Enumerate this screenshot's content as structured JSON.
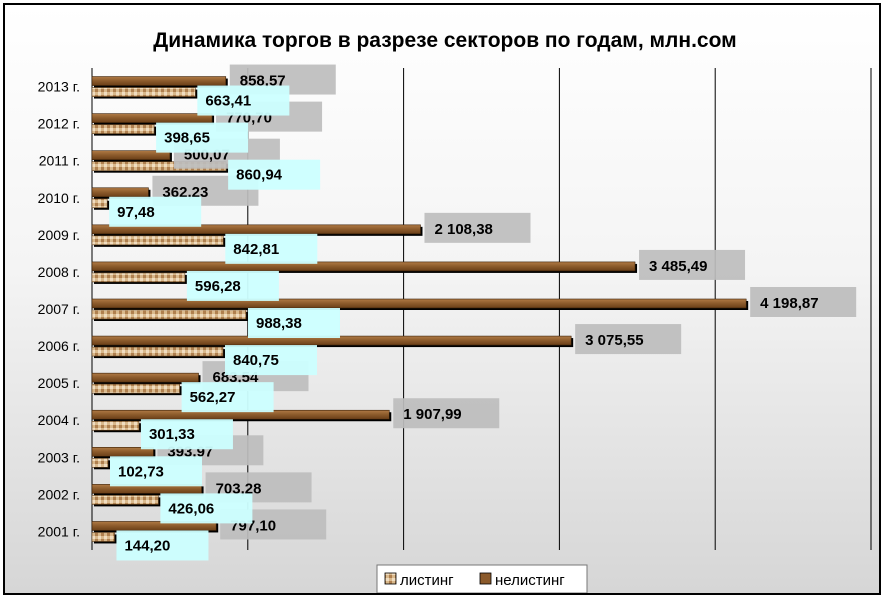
{
  "chart_data": {
    "type": "bar",
    "orientation": "horizontal",
    "title": "Динамика торгов в разрезе секторов по годам, млн.сом",
    "categories": [
      "2001 г.",
      "2002 г.",
      "2003 г.",
      "2004 г.",
      "2005 г.",
      "2006 г.",
      "2007 г.",
      "2008 г.",
      "2009 г.",
      "2010 г.",
      "2011 г.",
      "2012 г.",
      "2013 г."
    ],
    "series": [
      {
        "name": "листинг",
        "color": "#c8a070",
        "values": [
          144.2,
          426.06,
          102.73,
          301.33,
          562.27,
          840.75,
          988.38,
          596.28,
          842.81,
          97.48,
          860.94,
          398.65,
          663.41
        ],
        "labels": [
          "144,20",
          "426,06",
          "102,73",
          "301,33",
          "562,27",
          "840,75",
          "988,38",
          "596,28",
          "842,81",
          "97,48",
          "860,94",
          "398,65",
          "663,41"
        ]
      },
      {
        "name": "нелистинг",
        "color": "#8b5a2b",
        "values": [
          797.1,
          703.28,
          393.97,
          1907.99,
          683.54,
          3075.55,
          4198.87,
          3485.49,
          2108.38,
          362.23,
          500.07,
          770.7,
          858.57
        ],
        "labels": [
          "797,10",
          "703,28",
          "393,97",
          "1 907,99",
          "683,54",
          "3 075,55",
          "4 198,87",
          "3 485,49",
          "2 108,38",
          "362,23",
          "500,07",
          "770,70",
          "858,57"
        ]
      }
    ],
    "xlim": [
      0,
      5000
    ],
    "grid": true,
    "legend": "bottom"
  }
}
